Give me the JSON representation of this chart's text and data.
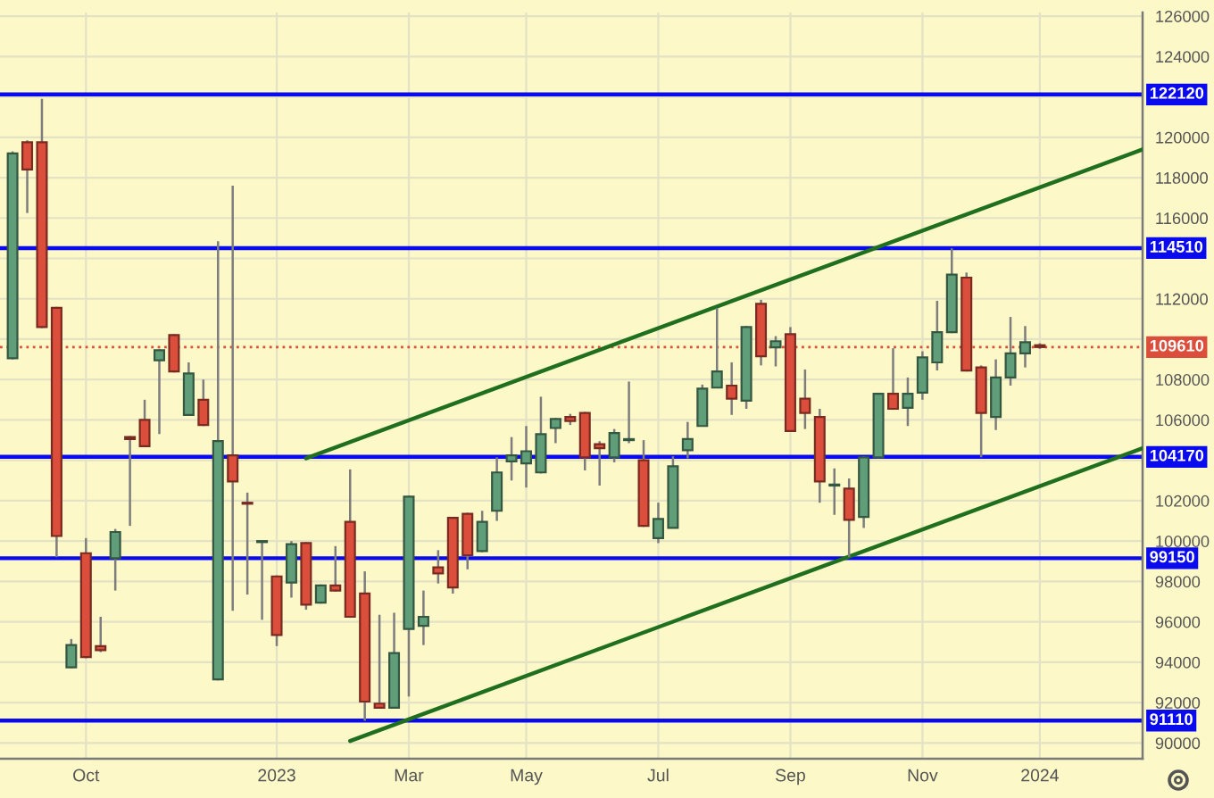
{
  "chart_data": {
    "type": "candlestick",
    "x": [
      "2022-08-29",
      "2022-09-05",
      "2022-09-12",
      "2022-09-19",
      "2022-09-26",
      "2022-10-03",
      "2022-10-10",
      "2022-10-17",
      "2022-10-24",
      "2022-10-31",
      "2022-11-07",
      "2022-11-14",
      "2022-11-21",
      "2022-11-28",
      "2022-12-05",
      "2022-12-12",
      "2022-12-19",
      "2022-12-26",
      "2023-01-02",
      "2023-01-09",
      "2023-01-16",
      "2023-01-23",
      "2023-01-30",
      "2023-02-06",
      "2023-02-13",
      "2023-02-20",
      "2023-02-27",
      "2023-03-06",
      "2023-03-13",
      "2023-03-20",
      "2023-03-27",
      "2023-04-03",
      "2023-04-10",
      "2023-04-17",
      "2023-04-24",
      "2023-05-01",
      "2023-05-08",
      "2023-05-15",
      "2023-05-22",
      "2023-05-29",
      "2023-06-05",
      "2023-06-12",
      "2023-06-19",
      "2023-06-26",
      "2023-07-03",
      "2023-07-10",
      "2023-07-17",
      "2023-07-24",
      "2023-07-31",
      "2023-08-07",
      "2023-08-14",
      "2023-08-21",
      "2023-08-28",
      "2023-09-04",
      "2023-09-11",
      "2023-09-18",
      "2023-09-25",
      "2023-10-02",
      "2023-10-09",
      "2023-10-16",
      "2023-10-23",
      "2023-10-30",
      "2023-11-06",
      "2023-11-13",
      "2023-11-20",
      "2023-11-27",
      "2023-12-04",
      "2023-12-11",
      "2023-12-18",
      "2023-12-25",
      "2024-01-01"
    ],
    "ohlc": [
      [
        109050,
        119300,
        109000,
        119200
      ],
      [
        119750,
        119850,
        116250,
        118400
      ],
      [
        119750,
        121900,
        110550,
        110600
      ],
      [
        111550,
        111600,
        99200,
        100250
      ],
      [
        93750,
        95150,
        93700,
        94850
      ],
      [
        99400,
        100150,
        94200,
        94250
      ],
      [
        94800,
        96250,
        94500,
        94600
      ],
      [
        99150,
        100600,
        97550,
        100450
      ],
      [
        105150,
        105200,
        100750,
        105050
      ],
      [
        106000,
        107000,
        104650,
        104700
      ],
      [
        108950,
        109500,
        105300,
        109450
      ],
      [
        110200,
        110250,
        108350,
        108400
      ],
      [
        106250,
        108850,
        106200,
        108300
      ],
      [
        107000,
        108000,
        105700,
        105750
      ],
      [
        93150,
        114850,
        93100,
        104950
      ],
      [
        104250,
        117600,
        96550,
        102950
      ],
      [
        101900,
        102400,
        97350,
        101850
      ],
      [
        99950,
        100000,
        96100,
        100000
      ],
      [
        98250,
        98300,
        94800,
        95350
      ],
      [
        97950,
        100000,
        97200,
        99850
      ],
      [
        99900,
        99950,
        96600,
        96850
      ],
      [
        96950,
        97850,
        96900,
        97800
      ],
      [
        97800,
        99750,
        97500,
        97550
      ],
      [
        100950,
        103550,
        96200,
        96250
      ],
      [
        97400,
        98500,
        91100,
        92050
      ],
      [
        91950,
        96350,
        91700,
        91750
      ],
      [
        91750,
        96450,
        91700,
        94450
      ],
      [
        95650,
        102250,
        92300,
        102200
      ],
      [
        95800,
        97550,
        94850,
        96250
      ],
      [
        98700,
        99550,
        97900,
        98400
      ],
      [
        101150,
        101200,
        97400,
        97700
      ],
      [
        101350,
        101400,
        98600,
        99300
      ],
      [
        99500,
        101500,
        99450,
        100950
      ],
      [
        101500,
        104150,
        101000,
        103400
      ],
      [
        103950,
        105150,
        103000,
        104250
      ],
      [
        103850,
        105700,
        102650,
        104450
      ],
      [
        103400,
        107150,
        103350,
        105300
      ],
      [
        105600,
        106100,
        104850,
        106050
      ],
      [
        106150,
        106300,
        105750,
        105950
      ],
      [
        106350,
        106400,
        103500,
        104150
      ],
      [
        104800,
        104950,
        102750,
        104600
      ],
      [
        104150,
        105550,
        103900,
        105350
      ],
      [
        105000,
        107900,
        104850,
        105050
      ],
      [
        104000,
        105000,
        100700,
        100750
      ],
      [
        100150,
        101900,
        99900,
        101100
      ],
      [
        100650,
        104200,
        100650,
        103700
      ],
      [
        104500,
        105900,
        104100,
        105050
      ],
      [
        105700,
        107750,
        105700,
        107550
      ],
      [
        107600,
        111550,
        107600,
        108400
      ],
      [
        107700,
        108850,
        106250,
        107050
      ],
      [
        106950,
        110650,
        106550,
        110600
      ],
      [
        111750,
        111950,
        108700,
        109150
      ],
      [
        109600,
        110150,
        108650,
        109900
      ],
      [
        110250,
        110600,
        105400,
        105450
      ],
      [
        107050,
        108500,
        105550,
        106350
      ],
      [
        106150,
        106550,
        101900,
        102950
      ],
      [
        102750,
        103600,
        101300,
        102800
      ],
      [
        102600,
        103100,
        99200,
        101050
      ],
      [
        101200,
        104200,
        100650,
        104150
      ],
      [
        104150,
        107350,
        104100,
        107300
      ],
      [
        107300,
        109550,
        106500,
        106550
      ],
      [
        106600,
        108100,
        105700,
        107300
      ],
      [
        107350,
        109400,
        107000,
        109100
      ],
      [
        108850,
        111900,
        108450,
        110350
      ],
      [
        110350,
        114500,
        110300,
        113200
      ],
      [
        113050,
        113300,
        108400,
        108450
      ],
      [
        108600,
        108700,
        104150,
        106350
      ],
      [
        106150,
        109000,
        105500,
        108100
      ],
      [
        108100,
        111100,
        107700,
        109300
      ],
      [
        109300,
        110650,
        108600,
        109850
      ],
      [
        109700,
        109800,
        109520,
        109610
      ]
    ],
    "colors": [
      "#5f9e78",
      "#dc4e3c",
      "#dc4e3c",
      "#dc4e3c",
      "#5f9e78",
      "#dc4e3c",
      "#dc4e3c",
      "#5f9e78",
      "#dc4e3c",
      "#dc4e3c",
      "#5f9e78",
      "#dc4e3c",
      "#5f9e78",
      "#dc4e3c",
      "#5f9e78",
      "#dc4e3c",
      "#dc4e3c",
      "#5f9e78",
      "#dc4e3c",
      "#5f9e78",
      "#dc4e3c",
      "#5f9e78",
      "#dc4e3c",
      "#dc4e3c",
      "#dc4e3c",
      "#dc4e3c",
      "#5f9e78",
      "#5f9e78",
      "#5f9e78",
      "#dc4e3c",
      "#dc4e3c",
      "#dc4e3c",
      "#5f9e78",
      "#5f9e78",
      "#5f9e78",
      "#5f9e78",
      "#5f9e78",
      "#5f9e78",
      "#dc4e3c",
      "#dc4e3c",
      "#dc4e3c",
      "#5f9e78",
      "#5f9e78",
      "#dc4e3c",
      "#5f9e78",
      "#5f9e78",
      "#5f9e78",
      "#5f9e78",
      "#5f9e78",
      "#dc4e3c",
      "#5f9e78",
      "#dc4e3c",
      "#5f9e78",
      "#dc4e3c",
      "#dc4e3c",
      "#dc4e3c",
      "#5f9e78",
      "#dc4e3c",
      "#5f9e78",
      "#5f9e78",
      "#dc4e3c",
      "#5f9e78",
      "#5f9e78",
      "#5f9e78",
      "#5f9e78",
      "#dc4e3c",
      "#dc4e3c",
      "#5f9e78",
      "#5f9e78",
      "#5f9e78",
      "#dc4e3c"
    ],
    "series": [
      {
        "type": "line",
        "color": "#1f6f1f",
        "x": [
          "2023-01-16",
          "2024-02-19"
        ],
        "values": [
          104100,
          119400
        ]
      },
      {
        "type": "line",
        "color": "#1f6f1f",
        "x": [
          "2023-02-06",
          "2024-02-19"
        ],
        "values": [
          90100,
          104600
        ]
      }
    ],
    "ref_lines": [
      {
        "axis": "y",
        "value": 122120,
        "label": "122120",
        "color": "#0a0aee"
      },
      {
        "axis": "y",
        "value": 114510,
        "label": "114510",
        "color": "#0a0aee"
      },
      {
        "axis": "y",
        "value": 109610,
        "label": "109610",
        "color": "#dc4e3c",
        "line_style": "dotted"
      },
      {
        "axis": "y",
        "value": 104170,
        "label": "104170",
        "color": "#0a0aee"
      },
      {
        "axis": "y",
        "value": 99150,
        "label": "99150",
        "color": "#0a0aee"
      },
      {
        "axis": "y",
        "value": 91110,
        "label": "91110",
        "color": "#0a0aee"
      }
    ],
    "xlim": [
      "2022-08-23",
      "2024-02-19"
    ],
    "xticks": [
      {
        "value": "2022-10-03",
        "label": "Oct"
      },
      {
        "value": "2023-01-02",
        "label": "2023"
      },
      {
        "value": "2023-03-06",
        "label": "Mar"
      },
      {
        "value": "2023-05-01",
        "label": "May"
      },
      {
        "value": "2023-07-03",
        "label": "Jul"
      },
      {
        "value": "2023-09-04",
        "label": "Sep"
      },
      {
        "value": "2023-11-06",
        "label": "Nov"
      },
      {
        "value": "2024-01-01",
        "label": "2024"
      }
    ],
    "ylim": [
      89220,
      126180
    ],
    "yticks": [
      90000,
      92000,
      94000,
      96000,
      98000,
      100000,
      102000,
      {
        "value": 104000,
        "label": null
      },
      106000,
      108000,
      {
        "value": 110000,
        "label": null
      },
      112000,
      {
        "value": 114000,
        "label": null
      },
      116000,
      118000,
      120000,
      {
        "value": 122000,
        "label": null
      },
      124000,
      126000
    ],
    "grid": true
  }
}
